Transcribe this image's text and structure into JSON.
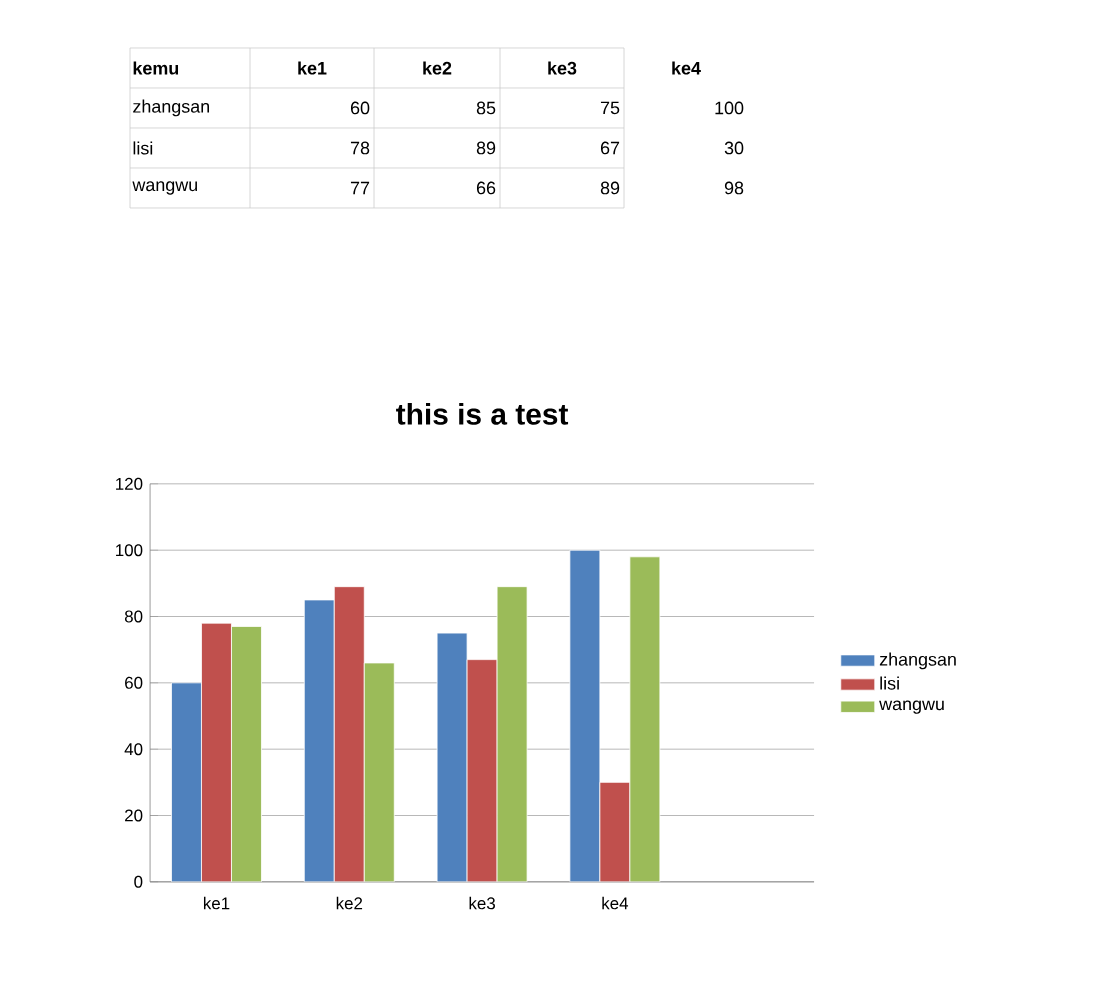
{
  "chart_data": [
    {
      "type": "heatmap",
      "annotations": [
        "kemu"
      ],
      "categories": [
        "ke1",
        "ke2",
        "ke3",
        "ke4"
      ],
      "y_categories": [
        "zhangsan",
        "lisi",
        "wangwu"
      ],
      "cells": [
        [
          60,
          85,
          75,
          100
        ],
        [
          78,
          89,
          67,
          30
        ],
        [
          77,
          66,
          89,
          98
        ]
      ],
      "data_labels": true
    },
    {
      "type": "bar",
      "title": "this is a test",
      "categories": [
        "ke1",
        "ke2",
        "ke3",
        "ke4",
        null
      ],
      "series": [
        {
          "name": "zhangsan",
          "color": "#4f81bd",
          "values": [
            60,
            85,
            75,
            100,
            null
          ]
        },
        {
          "name": "lisi",
          "color": "#c0504d",
          "values": [
            78,
            89,
            67,
            30,
            null
          ]
        },
        {
          "name": "wangwu",
          "color": "#9bbb59",
          "values": [
            77,
            66,
            89,
            98,
            null
          ]
        }
      ],
      "ylim": [
        0,
        120
      ],
      "yticks": [
        0,
        20,
        40,
        60,
        80,
        100,
        120
      ],
      "grid": "y",
      "legend": "right"
    }
  ]
}
